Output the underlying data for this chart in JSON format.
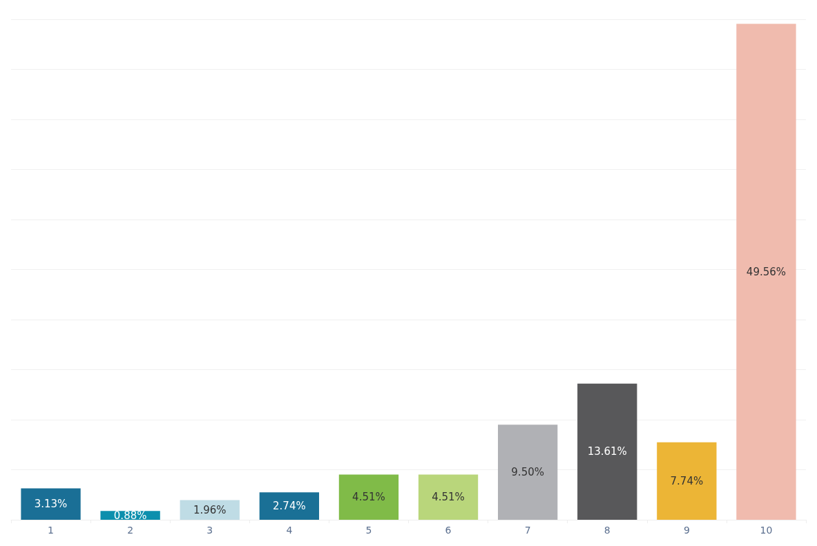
{
  "chart_data": {
    "type": "bar",
    "categories": [
      "1",
      "2",
      "3",
      "4",
      "5",
      "6",
      "7",
      "8",
      "9",
      "10"
    ],
    "values": [
      3.13,
      0.88,
      1.96,
      2.74,
      4.51,
      4.51,
      9.5,
      13.61,
      7.74,
      49.56
    ],
    "value_labels": [
      "3.13%",
      "0.88%",
      "1.96%",
      "2.74%",
      "4.51%",
      "4.51%",
      "9.50%",
      "13.61%",
      "7.74%",
      "49.56%"
    ],
    "colors": [
      "#1a6f96",
      "#0d8fad",
      "#bfdce5",
      "#1a7096",
      "#80bb48",
      "#b9d67b",
      "#b0b1b5",
      "#58585a",
      "#ecb536",
      "#f0bbae"
    ],
    "ylim": [
      0,
      50
    ],
    "yticks": [
      {
        "value": 0,
        "label": null
      },
      {
        "value": 5,
        "label": null
      },
      {
        "value": 10,
        "label": null
      },
      {
        "value": 15,
        "label": null
      },
      {
        "value": 20,
        "label": null
      },
      {
        "value": 25,
        "label": null
      },
      {
        "value": 30,
        "label": null
      },
      {
        "value": 35,
        "label": null
      },
      {
        "value": 40,
        "label": null
      },
      {
        "value": 45,
        "label": null
      },
      {
        "value": 50,
        "label": null
      }
    ],
    "grid": "y",
    "tick_labels": "x"
  }
}
